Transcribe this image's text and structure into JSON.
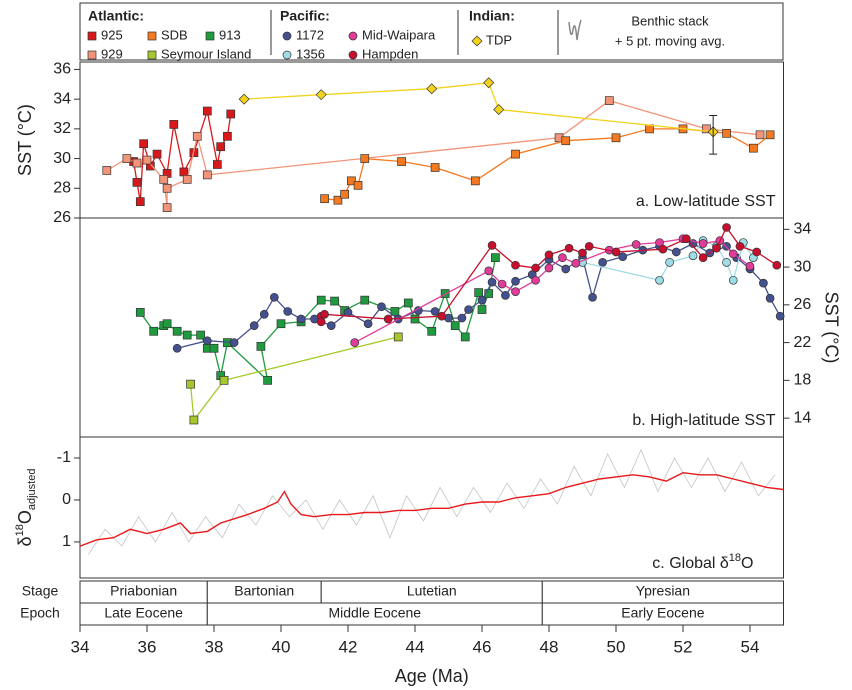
{
  "legend": {
    "groups": [
      "Atlantic:",
      "Pacific:",
      "Indian:"
    ]
  },
  "timescale": {
    "row_labels": [
      "Stage",
      "Epoch"
    ],
    "stages": [
      {
        "name": "Priabonian",
        "start": 34,
        "end": 37.8
      },
      {
        "name": "Bartonian",
        "start": 37.8,
        "end": 41.2
      },
      {
        "name": "Lutetian",
        "start": 41.2,
        "end": 47.8
      },
      {
        "name": "Ypresian",
        "start": 47.8,
        "end": 55
      }
    ],
    "epochs": [
      {
        "name": "Late Eocene",
        "start": 34,
        "end": 37.8
      },
      {
        "name": "Middle Eocene",
        "start": 37.8,
        "end": 47.8
      },
      {
        "name": "Early Eocene",
        "start": 47.8,
        "end": 55
      }
    ]
  },
  "chart_data": [
    {
      "type": "line",
      "panel_label": "a. Low-latitude SST",
      "ylabel": "SST (°C)",
      "yaxis_side": "left",
      "xlim": [
        34,
        55
      ],
      "ylim": [
        26,
        36.5
      ],
      "yticks": [
        26,
        28,
        30,
        32,
        34,
        36
      ],
      "series": [
        {
          "name": "925",
          "color": "#d7191c",
          "marker": "square",
          "x": [
            35.6,
            35.7,
            35.8,
            35.9,
            36.1,
            36.3,
            36.6,
            36.8,
            37.1,
            37.4,
            37.8,
            38.1,
            38.2,
            38.4,
            38.5
          ],
          "values": [
            29.8,
            28.4,
            27.1,
            31.0,
            29.5,
            30.3,
            29.0,
            32.3,
            29.1,
            30.4,
            33.2,
            29.6,
            30.8,
            31.5,
            33.0
          ]
        },
        {
          "name": "929",
          "color": "#f29478",
          "marker": "square",
          "x": [
            34.8,
            35.4,
            35.7,
            36.0,
            36.5,
            36.6,
            36.6,
            37.2,
            37.5,
            37.8,
            48.3,
            49.8,
            52.7,
            54.3
          ],
          "values": [
            29.2,
            30.0,
            29.7,
            29.9,
            28.6,
            26.7,
            28.0,
            28.6,
            31.5,
            28.9,
            31.4,
            33.9,
            32.0,
            31.6
          ]
        },
        {
          "name": "SDB",
          "color": "#f37a20",
          "marker": "square",
          "x": [
            41.3,
            41.7,
            41.9,
            42.1,
            42.3,
            42.5,
            43.6,
            44.6,
            45.8,
            47.0,
            48.5,
            50.0,
            51.0,
            52.0,
            53.3,
            54.1,
            54.6
          ],
          "values": [
            27.3,
            27.2,
            27.6,
            28.5,
            28.2,
            30.0,
            29.8,
            29.4,
            28.5,
            30.3,
            31.2,
            31.4,
            32.0,
            32.0,
            31.7,
            30.7,
            31.6
          ]
        },
        {
          "name": "TDP",
          "color": "#f3d21c",
          "marker": "diamond",
          "x": [
            38.9,
            41.2,
            44.5,
            46.2,
            46.5,
            52.9
          ],
          "values": [
            34.0,
            34.3,
            34.7,
            35.1,
            33.3,
            31.8
          ]
        }
      ],
      "error_bar": {
        "x": 52.9,
        "y": 31.6,
        "error": 1.3
      }
    },
    {
      "type": "line",
      "panel_label": "b. High-latitude SST",
      "ylabel": "SST (°C)",
      "yaxis_side": "right",
      "xlim": [
        34,
        55
      ],
      "ylim": [
        12,
        35.2
      ],
      "yticks": [
        14,
        18,
        22,
        26,
        30,
        34
      ],
      "series": [
        {
          "name": "913",
          "color": "#1f9a3f",
          "marker": "square",
          "x": [
            35.8,
            36.2,
            36.5,
            36.6,
            36.9,
            37.2,
            37.6,
            37.8,
            38.0,
            38.2,
            38.4,
            39.6,
            39.4,
            40.0,
            40.6,
            41.2,
            41.6,
            41.9,
            42.5,
            43.4,
            43.8,
            44.0,
            44.5,
            44.9,
            45.2,
            45.5,
            45.9,
            46.0,
            46.2,
            46.4
          ],
          "values": [
            25.2,
            23.2,
            23.8,
            24.0,
            23.2,
            22.8,
            22.8,
            21.4,
            21.4,
            18.5,
            22.0,
            18.0,
            21.6,
            24.0,
            24.2,
            26.5,
            26.4,
            25.4,
            26.5,
            25.3,
            26.2,
            24.5,
            23.2,
            27.2,
            23.8,
            22.6,
            27.3,
            25.5,
            27.2,
            31.0
          ]
        },
        {
          "name": "Seymour Island",
          "color": "#a6c82c",
          "marker": "square",
          "x": [
            37.3,
            37.4,
            38.3,
            43.5
          ],
          "values": [
            17.6,
            13.8,
            18.0,
            22.6
          ]
        },
        {
          "name": "1172",
          "color": "#45508f",
          "marker": "circle",
          "x": [
            36.9,
            37.8,
            38.6,
            39.2,
            39.5,
            39.8,
            40.2,
            40.6,
            41.0,
            41.5,
            42.0,
            42.6,
            43.0,
            43.5,
            44.1,
            44.6,
            45.0,
            45.4,
            45.6,
            46.0,
            46.3,
            46.7,
            47.0,
            47.5,
            48.0,
            48.5,
            49.0,
            49.3,
            49.6,
            50.2,
            50.8,
            51.3,
            51.8,
            52.3,
            52.8,
            53.3,
            53.6,
            54.0,
            54.4,
            54.6,
            54.9
          ],
          "values": [
            21.4,
            22.2,
            22.0,
            23.8,
            25.0,
            26.8,
            25.3,
            24.5,
            24.5,
            23.8,
            25.2,
            24.0,
            25.8,
            24.5,
            25.4,
            25.3,
            24.6,
            24.6,
            25.5,
            26.5,
            28.4,
            27.0,
            28.5,
            29.2,
            30.8,
            29.8,
            31.0,
            26.8,
            30.5,
            31.1,
            31.8,
            32.2,
            31.6,
            32.5,
            31.5,
            32.2,
            31.0,
            29.8,
            28.3,
            26.7,
            24.8
          ]
        },
        {
          "name": "1356",
          "color": "#9fdde6",
          "marker": "circle",
          "x": [
            49.0,
            51.3,
            51.6,
            52.3,
            52.6,
            53.0,
            53.3,
            53.5,
            53.8,
            54.1
          ],
          "values": [
            30.5,
            28.6,
            30.5,
            31.2,
            32.8,
            32.2,
            30.5,
            28.6,
            32.6,
            31.0
          ]
        },
        {
          "name": "Mid-Waipara",
          "color": "#e23c9b",
          "marker": "circle",
          "x": [
            42.2,
            46.2,
            46.6,
            47.0,
            47.6,
            48.0,
            48.4,
            48.8,
            49.8,
            50.6,
            51.3,
            52.0,
            52.6,
            53.1,
            53.5,
            54.0
          ],
          "values": [
            22.0,
            29.6,
            28.2,
            27.4,
            28.6,
            29.9,
            31.0,
            30.4,
            31.8,
            32.4,
            32.6,
            33.0,
            32.5,
            32.8,
            31.4,
            30.1
          ]
        },
        {
          "name": "Hampden",
          "color": "#c8102e",
          "marker": "circle",
          "x": [
            41.2,
            41.2,
            41.3,
            43.2,
            44.8,
            46.3,
            47.0,
            47.6,
            48.0,
            48.6,
            49.0,
            49.2,
            50.0,
            51.4,
            52.1,
            52.6,
            53.0,
            53.3,
            53.7,
            54.2,
            54.8
          ],
          "values": [
            24.8,
            24.2,
            25.0,
            24.5,
            24.8,
            32.3,
            30.2,
            29.9,
            31.3,
            32.0,
            31.5,
            32.2,
            31.6,
            31.9,
            33.0,
            31.0,
            32.0,
            34.2,
            32.2,
            31.6,
            30.2
          ]
        }
      ]
    },
    {
      "type": "line",
      "panel_label": [
        "c. Global δ",
        "18",
        "O"
      ],
      "ylabel": [
        "δ",
        "18",
        "O",
        "adjusted"
      ],
      "yaxis_side": "left",
      "inverted": true,
      "xlim": [
        34,
        55
      ],
      "ylim": [
        -1.5,
        1.86
      ],
      "yticks": [
        -1,
        0,
        1
      ],
      "xticks": [
        34,
        36,
        38,
        40,
        42,
        44,
        46,
        48,
        50,
        52,
        54
      ],
      "xlabel": "Age (Ma)",
      "series": [
        {
          "name": "Benthic stack",
          "color": "#c4c4c4",
          "marker": "none",
          "x": [
            34.25,
            34.75,
            35.25,
            35.75,
            36.25,
            36.75,
            37.25,
            37.75,
            38.25,
            38.75,
            39.25,
            39.75,
            40.25,
            40.75,
            41.25,
            41.75,
            42.25,
            42.75,
            43.25,
            43.75,
            44.25,
            44.75,
            45.25,
            45.75,
            46.25,
            46.75,
            47.25,
            47.75,
            48.25,
            48.75,
            49.25,
            49.75,
            50.25,
            50.75,
            51.25,
            51.75,
            52.25,
            52.75,
            53.25,
            53.75,
            54.25,
            54.75
          ],
          "values": [
            1.3,
            0.7,
            1.1,
            0.4,
            1.0,
            0.3,
            1.0,
            0.4,
            0.9,
            0.1,
            0.6,
            -0.1,
            0.4,
            0.0,
            0.7,
            0.0,
            0.6,
            -0.1,
            0.9,
            -0.1,
            0.5,
            -0.3,
            0.4,
            -0.3,
            0.3,
            -0.4,
            0.2,
            -0.5,
            0.1,
            -0.8,
            -0.1,
            -1.1,
            -0.3,
            -1.2,
            -0.2,
            -1.0,
            -0.3,
            -1.0,
            -0.2,
            -0.9,
            -0.1,
            -0.6
          ]
        },
        {
          "name": "+ 5 pt. moving avg.",
          "color": "#e8191c",
          "marker": "none",
          "x": [
            34,
            34.5,
            35,
            35.5,
            36,
            36.5,
            37,
            37.3,
            37.8,
            38.2,
            38.6,
            39,
            39.5,
            39.9,
            40.1,
            40.3,
            40.6,
            41,
            41.5,
            42,
            42.5,
            43,
            43.5,
            44,
            44.5,
            45,
            45.5,
            46,
            46.5,
            47,
            47.5,
            48,
            48.5,
            49,
            49.5,
            50,
            50.5,
            51,
            51.5,
            52,
            52.5,
            53,
            53.5,
            54,
            54.5,
            55
          ],
          "values": [
            1.1,
            0.95,
            0.9,
            0.7,
            0.8,
            0.7,
            0.55,
            0.8,
            0.75,
            0.55,
            0.45,
            0.35,
            0.2,
            0.05,
            -0.2,
            0.1,
            0.35,
            0.4,
            0.35,
            0.35,
            0.3,
            0.3,
            0.25,
            0.25,
            0.2,
            0.2,
            0.1,
            0.05,
            0.05,
            -0.05,
            -0.1,
            -0.15,
            -0.3,
            -0.4,
            -0.5,
            -0.55,
            -0.6,
            -0.55,
            -0.45,
            -0.65,
            -0.6,
            -0.6,
            -0.5,
            -0.4,
            -0.3,
            -0.25
          ]
        }
      ]
    }
  ]
}
